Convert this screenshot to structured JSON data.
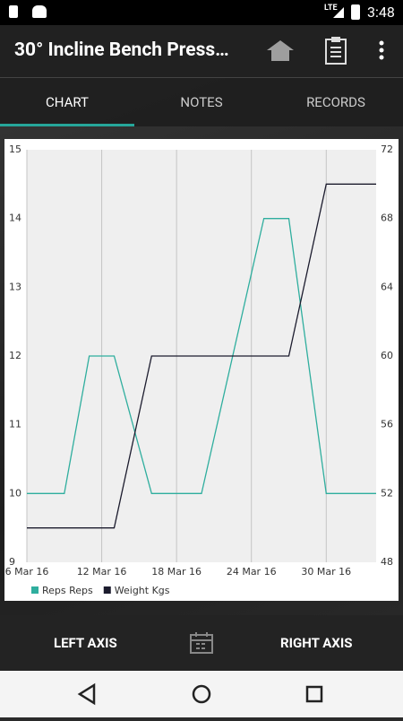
{
  "status_bar": {
    "network": "LTE",
    "time": "3:48"
  },
  "app_bar": {
    "title": "30° Incline Bench Press…"
  },
  "tabs": [
    "CHART",
    "NOTES",
    "RECORDS"
  ],
  "chart_data": {
    "type": "line",
    "x": [
      "6 Mar 16",
      "9 Mar 16",
      "11 Mar 16",
      "13 Mar 16",
      "16 Mar 16",
      "20 Mar 16",
      "25 Mar 16",
      "27 Mar 16",
      "30 Mar 16",
      "3 Apr 16"
    ],
    "series": [
      {
        "name": "Reps Reps",
        "color": "#2fae9e",
        "values": [
          10,
          10,
          12,
          12,
          10,
          10,
          14,
          14,
          10,
          10
        ]
      },
      {
        "name": "Weight Kgs",
        "color": "#1c1c2e",
        "axis": "y2",
        "values": [
          50,
          50,
          50,
          50,
          60,
          60,
          60,
          60,
          70,
          70
        ]
      }
    ],
    "xlim": [
      "6 Mar 16",
      "3 Apr 16"
    ],
    "xticks": [
      "6 Mar 16",
      "12 Mar 16",
      "18 Mar 16",
      "24 Mar 16",
      "30 Mar 16"
    ],
    "ylim": [
      9,
      15
    ],
    "yticks": [
      9,
      10,
      11,
      12,
      13,
      14,
      15
    ],
    "y2lim": [
      48,
      72
    ],
    "y2ticks": [
      48,
      52,
      56,
      60,
      64,
      68,
      72
    ],
    "grid": true
  },
  "bottom_bar": {
    "left": "LEFT AXIS",
    "right": "RIGHT AXIS"
  }
}
